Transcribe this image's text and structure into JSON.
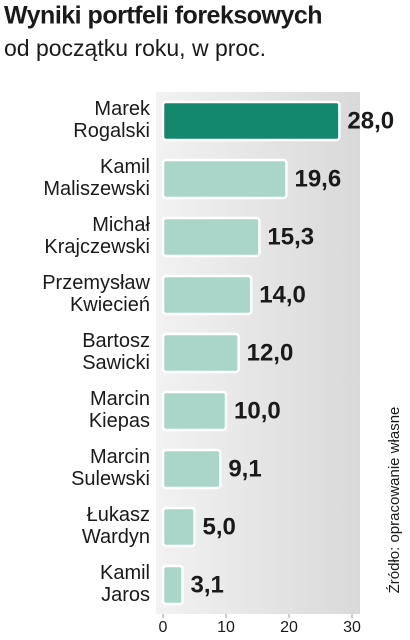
{
  "chart_data": {
    "type": "bar",
    "orientation": "horizontal",
    "title": "Wyniki portfeli foreksowych",
    "subtitle": "od początku roku, w proc.",
    "source": "Źródło: opracowanie własne",
    "categories": [
      "Marek\nRogalski",
      "Kamil\nMaliszewski",
      "Michał\nKrajczewski",
      "Przemysław\nKwiecień",
      "Bartosz\nSawicki",
      "Marcin\nKiepas",
      "Marcin\nSulewski",
      "Łukasz\nWardyn",
      "Kamil\nJaros"
    ],
    "values": [
      28.0,
      19.6,
      15.3,
      14.0,
      12.0,
      10.0,
      9.1,
      5.0,
      3.1
    ],
    "value_labels": [
      "28,0",
      "19,6",
      "15,3",
      "14,0",
      "12,0",
      "10,0",
      "9,1",
      "5,0",
      "3,1"
    ],
    "colors": [
      "#14876f",
      "#a9d6c9",
      "#a9d6c9",
      "#a9d6c9",
      "#a9d6c9",
      "#a9d6c9",
      "#a9d6c9",
      "#a9d6c9",
      "#a9d6c9"
    ],
    "xlim": [
      0,
      30
    ],
    "xticks": [
      0,
      10,
      20,
      30
    ]
  }
}
